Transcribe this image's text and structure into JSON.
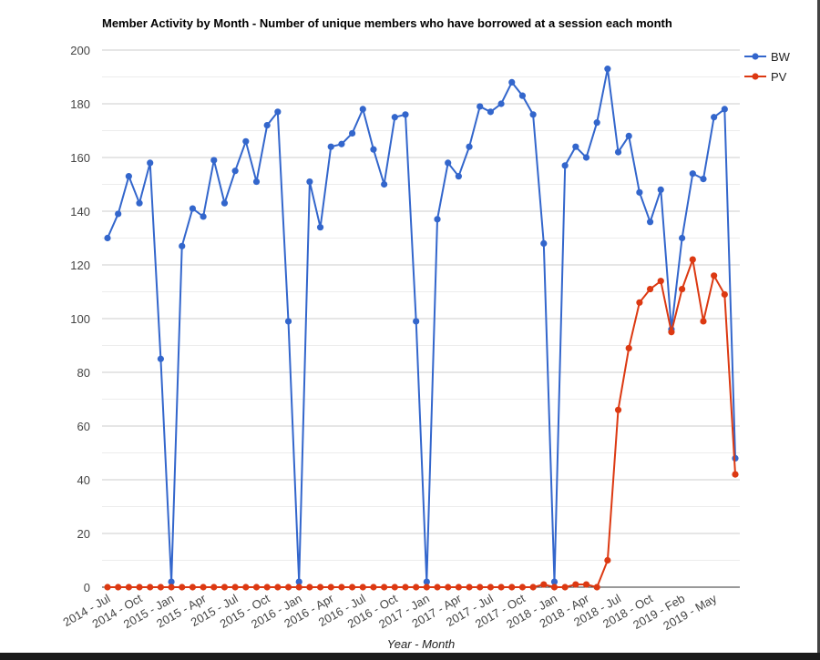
{
  "chart_data": {
    "type": "line",
    "title": "Member Activity by Month - Number of unique members who have borrowed at a session each month",
    "xlabel": "Year - Month",
    "ylabel": "",
    "ylim": [
      0,
      200
    ],
    "yticks": [
      0,
      20,
      40,
      60,
      80,
      100,
      120,
      140,
      160,
      180,
      200
    ],
    "grid": true,
    "legend_position": "right",
    "tick_labels": [
      {
        "index": 0,
        "label": "2014 - Jul"
      },
      {
        "index": 3,
        "label": "2014 - Oct"
      },
      {
        "index": 6,
        "label": "2015 - Jan"
      },
      {
        "index": 9,
        "label": "2015 - Apr"
      },
      {
        "index": 12,
        "label": "2015 - Jul"
      },
      {
        "index": 15,
        "label": "2015 - Oct"
      },
      {
        "index": 18,
        "label": "2016 - Jan"
      },
      {
        "index": 21,
        "label": "2016 - Apr"
      },
      {
        "index": 24,
        "label": "2016 - Jul"
      },
      {
        "index": 27,
        "label": "2016 - Oct"
      },
      {
        "index": 30,
        "label": "2017 - Jan"
      },
      {
        "index": 33,
        "label": "2017 - Apr"
      },
      {
        "index": 36,
        "label": "2017 - Jul"
      },
      {
        "index": 39,
        "label": "2017 - Oct"
      },
      {
        "index": 42,
        "label": "2018 - Jan"
      },
      {
        "index": 45,
        "label": "2018 - Apr"
      },
      {
        "index": 48,
        "label": "2018 - Jul"
      },
      {
        "index": 51,
        "label": "2018 - Oct"
      },
      {
        "index": 54,
        "label": "2019 - Feb"
      },
      {
        "index": 57,
        "label": "2019 - May"
      }
    ],
    "series": [
      {
        "name": "BW",
        "color": "#3366cc",
        "values": [
          130,
          139,
          153,
          143,
          158,
          85,
          2,
          127,
          141,
          138,
          159,
          143,
          155,
          166,
          151,
          172,
          177,
          99,
          2,
          151,
          134,
          164,
          165,
          169,
          178,
          163,
          150,
          175,
          176,
          99,
          2,
          137,
          158,
          153,
          164,
          179,
          177,
          180,
          188,
          183,
          176,
          128,
          2,
          157,
          164,
          160,
          173,
          193,
          162,
          168,
          147,
          136,
          148,
          96,
          130,
          154,
          152,
          175,
          178,
          48
        ]
      },
      {
        "name": "PV",
        "color": "#dc3912",
        "values": [
          0,
          0,
          0,
          0,
          0,
          0,
          0,
          0,
          0,
          0,
          0,
          0,
          0,
          0,
          0,
          0,
          0,
          0,
          0,
          0,
          0,
          0,
          0,
          0,
          0,
          0,
          0,
          0,
          0,
          0,
          0,
          0,
          0,
          0,
          0,
          0,
          0,
          0,
          0,
          0,
          0,
          1,
          0,
          0,
          1,
          1,
          0,
          10,
          66,
          89,
          106,
          111,
          114,
          95,
          111,
          122,
          99,
          116,
          109,
          42
        ]
      }
    ]
  }
}
